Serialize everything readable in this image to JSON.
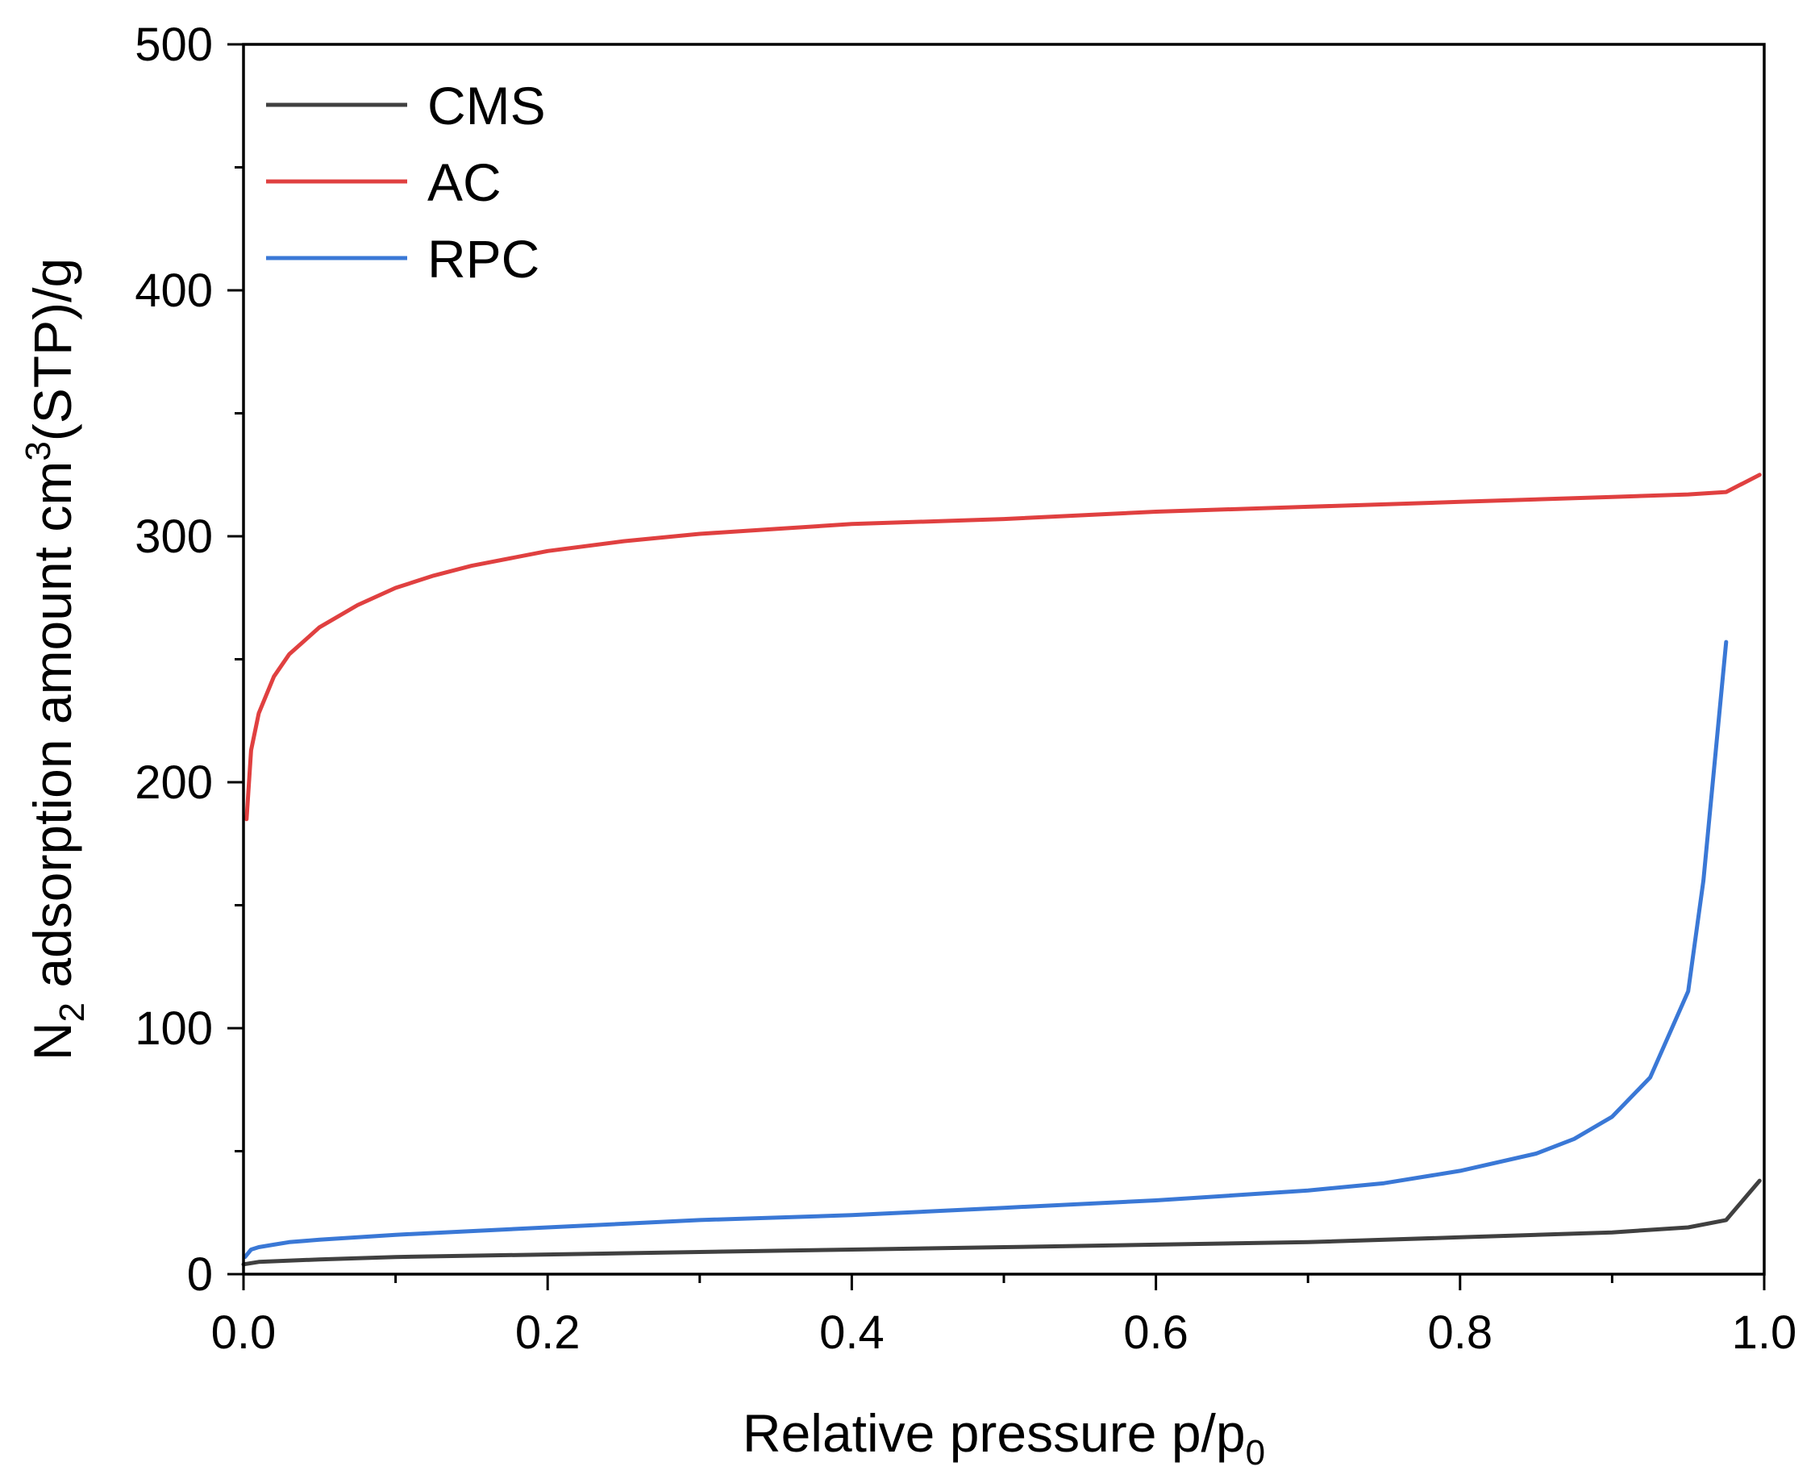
{
  "chart_data": {
    "type": "line",
    "xlabel": {
      "main": "Relative pressure p/p",
      "subscript": "0"
    },
    "ylabel": {
      "part1": "N",
      "sub": "2",
      "part2": " adsorption amount cm",
      "sup": "3",
      "part3": "(STP)/g"
    },
    "xlim": [
      0.0,
      1.0
    ],
    "ylim": [
      0,
      500
    ],
    "xticks": [
      0.0,
      0.2,
      0.4,
      0.6,
      0.8,
      1.0
    ],
    "xtick_labels": [
      "0.0",
      "0.2",
      "0.4",
      "0.6",
      "0.8",
      "1.0"
    ],
    "yticks": [
      0,
      100,
      200,
      300,
      400,
      500
    ],
    "ytick_labels": [
      "0",
      "100",
      "200",
      "300",
      "400",
      "500"
    ],
    "grid": false,
    "legend_position": "top-left",
    "series": [
      {
        "name": "CMS",
        "color": "#404040",
        "x": [
          0.0,
          0.01,
          0.05,
          0.1,
          0.2,
          0.3,
          0.4,
          0.5,
          0.6,
          0.7,
          0.8,
          0.9,
          0.95,
          0.975,
          0.997
        ],
        "y": [
          4,
          5,
          6,
          7,
          8,
          9,
          10,
          11,
          12,
          13,
          15,
          17,
          19,
          22,
          38
        ]
      },
      {
        "name": "AC",
        "color": "#e04040",
        "x": [
          0.002,
          0.005,
          0.01,
          0.02,
          0.03,
          0.05,
          0.075,
          0.1,
          0.125,
          0.15,
          0.2,
          0.25,
          0.3,
          0.35,
          0.4,
          0.5,
          0.6,
          0.7,
          0.8,
          0.9,
          0.95,
          0.975,
          0.997
        ],
        "y": [
          185,
          213,
          228,
          243,
          252,
          263,
          272,
          279,
          284,
          288,
          294,
          298,
          301,
          303,
          305,
          307,
          310,
          312,
          314,
          316,
          317,
          318,
          325
        ]
      },
      {
        "name": "RPC",
        "color": "#3a78d6",
        "x": [
          0.001,
          0.005,
          0.01,
          0.02,
          0.03,
          0.05,
          0.1,
          0.2,
          0.3,
          0.4,
          0.5,
          0.6,
          0.7,
          0.75,
          0.8,
          0.85,
          0.875,
          0.9,
          0.925,
          0.95,
          0.96,
          0.975
        ],
        "y": [
          7,
          10,
          11,
          12,
          13,
          14,
          16,
          19,
          22,
          24,
          27,
          30,
          34,
          37,
          42,
          49,
          55,
          64,
          80,
          115,
          160,
          257
        ]
      }
    ]
  }
}
